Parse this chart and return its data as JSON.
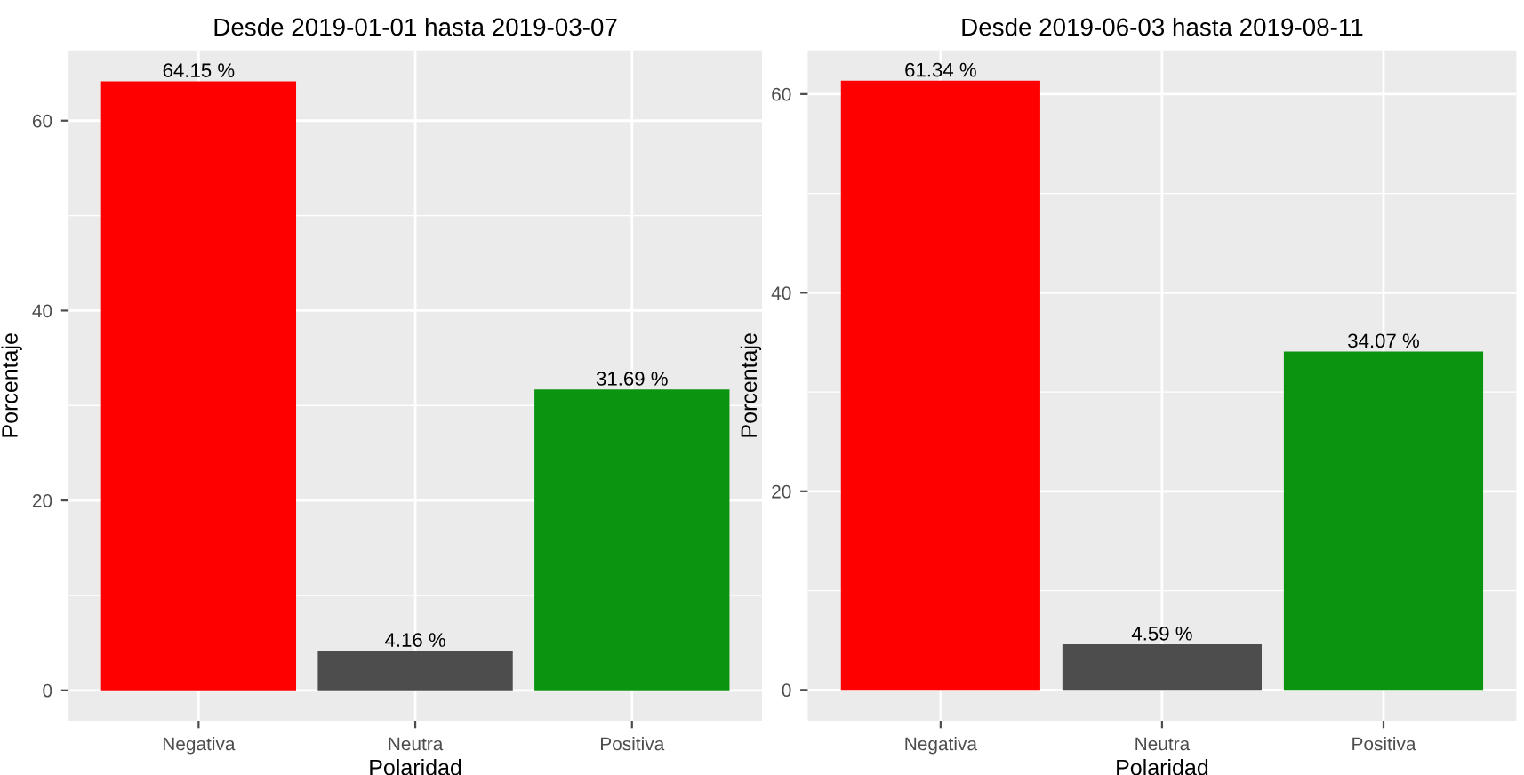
{
  "chart_data": [
    {
      "type": "bar",
      "title": "Desde 2019-01-01 hasta 2019-03-07",
      "xlabel": "Polaridad",
      "ylabel": "Porcentaje",
      "categories": [
        "Negativa",
        "Neutra",
        "Positiva"
      ],
      "values": [
        64.15,
        4.16,
        31.69
      ],
      "colors": [
        "#ff0000",
        "#4d4d4d",
        "#0a9410"
      ],
      "value_labels": [
        "64.15 %",
        "4.16 %",
        "31.69 %"
      ],
      "ylim": [
        -3.2,
        67.4
      ],
      "yticks": [
        0,
        20,
        40,
        60
      ],
      "grid": true,
      "legend": false
    },
    {
      "type": "bar",
      "title": "Desde 2019-06-03 hasta 2019-08-11",
      "xlabel": "Polaridad",
      "ylabel": "Porcentaje",
      "categories": [
        "Negativa",
        "Neutra",
        "Positiva"
      ],
      "values": [
        61.34,
        4.59,
        34.07
      ],
      "colors": [
        "#ff0000",
        "#4d4d4d",
        "#0a9410"
      ],
      "value_labels": [
        "61.34 %",
        "4.59 %",
        "34.07 %"
      ],
      "ylim": [
        -3.1,
        64.4
      ],
      "yticks": [
        0,
        20,
        40,
        60
      ],
      "grid": true,
      "legend": false
    }
  ]
}
